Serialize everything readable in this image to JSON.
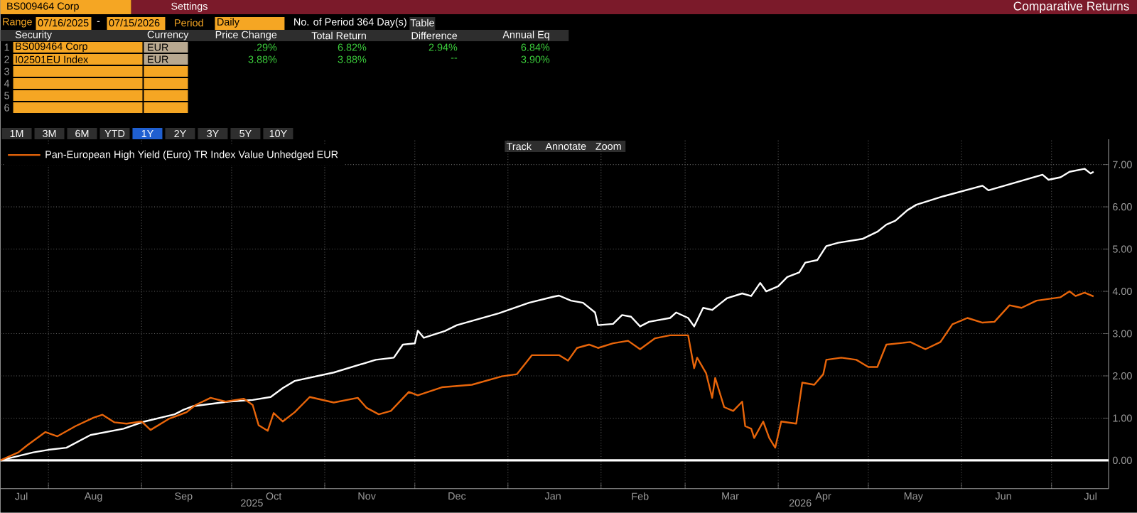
{
  "chart_data": {
    "type": "line",
    "title": "Comparative Returns",
    "annotations": [
      "BS009464 Corp",
      "Settings",
      "Range",
      "07/16/2025",
      "-",
      "07/15/2026",
      "Period",
      "Daily",
      "No. of Period 364 Day(s)",
      "Table",
      "Security",
      "Currency",
      "Price Change",
      "Total Return",
      "Difference",
      "Annual Eq",
      "BS009464 Corp",
      "EUR",
      ".29%",
      "6.82%",
      "2.94%",
      "6.84%",
      "I02501EU Index",
      "EUR",
      "3.88%",
      "3.88%",
      "--",
      "3.90%",
      "1M",
      "3M",
      "6M",
      "YTD",
      "1Y",
      "2Y",
      "3Y",
      "5Y",
      "10Y",
      "Track",
      "Annotate",
      "Zoom",
      "2025",
      "2026",
      "1",
      "2",
      "3",
      "4",
      "5",
      "6"
    ],
    "xlim": [
      "2025-07-16",
      "2026-07-20"
    ],
    "ylim": [
      -0.67,
      7.6
    ],
    "xticks": [
      {
        "value": "2025-08-01",
        "label": null
      },
      {
        "value": "2025-09-01",
        "label": null
      },
      {
        "value": "2025-10-01",
        "label": null
      },
      {
        "value": "2025-11-01",
        "label": null
      },
      {
        "value": "2025-12-01",
        "label": null
      },
      {
        "value": "2026-01-01",
        "label": null
      },
      {
        "value": "2026-02-01",
        "label": null
      },
      {
        "value": "2026-03-01",
        "label": null
      },
      {
        "value": "2026-04-01",
        "label": null
      },
      {
        "value": "2026-05-01",
        "label": null
      },
      {
        "value": "2026-06-01",
        "label": null
      },
      {
        "value": "2026-07-01",
        "label": null
      },
      {
        "value": "2025-07-23",
        "label": "Jul"
      },
      {
        "value": "2025-08-16",
        "label": "Aug"
      },
      {
        "value": "2025-09-15",
        "label": "Sep"
      },
      {
        "value": "2025-10-15",
        "label": "Oct"
      },
      {
        "value": "2025-11-15",
        "label": "Nov"
      },
      {
        "value": "2025-12-15",
        "label": "Dec"
      },
      {
        "value": "2026-01-16",
        "label": "Jan"
      },
      {
        "value": "2026-02-14",
        "label": "Feb"
      },
      {
        "value": "2026-03-16",
        "label": "Mar"
      },
      {
        "value": "2026-04-16",
        "label": "Apr"
      },
      {
        "value": "2026-05-16",
        "label": "May"
      },
      {
        "value": "2026-06-15",
        "label": "Jun"
      },
      {
        "value": "2026-07-14",
        "label": "Jul"
      }
    ],
    "yticks": [
      {
        "value": 0,
        "label": "0.00"
      },
      {
        "value": 1,
        "label": "1.00"
      },
      {
        "value": 2,
        "label": "2.00"
      },
      {
        "value": 3,
        "label": "3.00"
      },
      {
        "value": 4,
        "label": "4.00"
      },
      {
        "value": 5,
        "label": "5.00"
      },
      {
        "value": 6,
        "label": "6.00"
      },
      {
        "value": 7,
        "label": "7.00"
      }
    ],
    "grid": true,
    "legend": "top left",
    "ref_lines": [
      {
        "axis": "y",
        "value": 0,
        "color": "#ffffff"
      }
    ],
    "series": [
      {
        "color": "#ffffff",
        "x": [
          "2025-07-16",
          "2025-07-27",
          "2025-08-01",
          "2025-08-07",
          "2025-08-15",
          "2025-08-26",
          "2025-09-02",
          "2025-09-12",
          "2025-09-15",
          "2025-09-18",
          "2025-09-30",
          "2025-10-08",
          "2025-10-14",
          "2025-10-18",
          "2025-10-22",
          "2025-11-04",
          "2025-11-18",
          "2025-11-24",
          "2025-11-27",
          "2025-12-01",
          "2025-12-02",
          "2025-12-04",
          "2025-12-11",
          "2025-12-15",
          "2025-12-29",
          "2026-01-08",
          "2026-01-16",
          "2026-01-18",
          "2026-01-22",
          "2026-01-26",
          "2026-01-30",
          "2026-01-31",
          "2026-02-05",
          "2026-02-08",
          "2026-02-11",
          "2026-02-14",
          "2026-02-17",
          "2026-02-24",
          "2026-02-26",
          "2026-03-02",
          "2026-03-04",
          "2026-03-07",
          "2026-03-10",
          "2026-03-13",
          "2026-03-15",
          "2026-03-20",
          "2026-03-23",
          "2026-03-26",
          "2026-03-28",
          "2026-04-01",
          "2026-04-04",
          "2026-04-08",
          "2026-04-10",
          "2026-04-14",
          "2026-04-17",
          "2026-04-21",
          "2026-04-29",
          "2026-05-04",
          "2026-05-07",
          "2026-05-10",
          "2026-05-14",
          "2026-05-17",
          "2026-05-26",
          "2026-06-08",
          "2026-06-10",
          "2026-06-28",
          "2026-06-30",
          "2026-07-04",
          "2026-07-07",
          "2026-07-12",
          "2026-07-14",
          "2026-07-15"
        ],
        "values": [
          0,
          0.19,
          0.25,
          0.3,
          0.6,
          0.75,
          0.92,
          1.09,
          1.2,
          1.28,
          1.39,
          1.43,
          1.5,
          1.71,
          1.88,
          2.08,
          2.38,
          2.43,
          2.74,
          2.77,
          3.07,
          2.9,
          3.06,
          3.2,
          3.48,
          3.73,
          3.87,
          3.9,
          3.78,
          3.73,
          3.5,
          3.2,
          3.23,
          3.44,
          3.4,
          3.17,
          3.28,
          3.37,
          3.5,
          3.37,
          3.17,
          3.61,
          3.56,
          3.73,
          3.84,
          3.95,
          3.89,
          4.2,
          4.0,
          4.12,
          4.34,
          4.45,
          4.68,
          4.74,
          5.07,
          5.15,
          5.24,
          5.41,
          5.58,
          5.67,
          5.92,
          6.05,
          6.25,
          6.5,
          6.39,
          6.76,
          6.64,
          6.7,
          6.83,
          6.9,
          6.79,
          6.83
        ]
      },
      {
        "name": "Pan-European High Yield (Euro) TR Index Value Unhedged EUR",
        "color": "#e8650a",
        "x": [
          "2025-07-16",
          "2025-07-22",
          "2025-07-25",
          "2025-07-31",
          "2025-08-04",
          "2025-08-10",
          "2025-08-16",
          "2025-08-19",
          "2025-08-23",
          "2025-08-27",
          "2025-09-01",
          "2025-09-04",
          "2025-09-10",
          "2025-09-16",
          "2025-09-19",
          "2025-09-24",
          "2025-09-29",
          "2025-10-05",
          "2025-10-08",
          "2025-10-10",
          "2025-10-13",
          "2025-10-15",
          "2025-10-18",
          "2025-10-22",
          "2025-10-27",
          "2025-11-04",
          "2025-11-12",
          "2025-11-15",
          "2025-11-19",
          "2025-11-23",
          "2025-11-29",
          "2025-12-02",
          "2025-12-10",
          "2025-12-20",
          "2025-12-30",
          "2026-01-04",
          "2026-01-09",
          "2026-01-18",
          "2026-01-21",
          "2026-01-24",
          "2026-01-28",
          "2026-01-31",
          "2026-02-05",
          "2026-02-10",
          "2026-02-14",
          "2026-02-19",
          "2026-02-24",
          "2026-03-02",
          "2026-03-04",
          "2026-03-05",
          "2026-03-08",
          "2026-03-10",
          "2026-03-11",
          "2026-03-14",
          "2026-03-17",
          "2026-03-20",
          "2026-03-21",
          "2026-03-23",
          "2026-03-24",
          "2026-03-27",
          "2026-03-29",
          "2026-03-31",
          "2026-04-02",
          "2026-04-07",
          "2026-04-09",
          "2026-04-13",
          "2026-04-16",
          "2026-04-17",
          "2026-04-22",
          "2026-04-27",
          "2026-05-01",
          "2026-05-04",
          "2026-05-07",
          "2026-05-15",
          "2026-05-20",
          "2026-05-25",
          "2026-05-29",
          "2026-06-03",
          "2026-06-08",
          "2026-06-12",
          "2026-06-17",
          "2026-06-21",
          "2026-06-26",
          "2026-07-04",
          "2026-07-07",
          "2026-07-09",
          "2026-07-12",
          "2026-07-15"
        ],
        "values": [
          0,
          0.19,
          0.36,
          0.67,
          0.57,
          0.81,
          1.01,
          1.08,
          0.9,
          0.87,
          0.92,
          0.72,
          0.98,
          1.14,
          1.31,
          1.48,
          1.39,
          1.46,
          1.31,
          0.83,
          0.7,
          1.12,
          0.92,
          1.14,
          1.5,
          1.37,
          1.48,
          1.24,
          1.09,
          1.17,
          1.62,
          1.54,
          1.73,
          1.79,
          1.99,
          2.04,
          2.49,
          2.49,
          2.36,
          2.66,
          2.74,
          2.66,
          2.77,
          2.83,
          2.63,
          2.89,
          2.96,
          2.96,
          2.18,
          2.43,
          2.06,
          1.48,
          1.95,
          1.26,
          1.17,
          1.39,
          0.81,
          0.75,
          0.53,
          0.92,
          0.53,
          0.3,
          0.92,
          0.87,
          1.84,
          1.79,
          2.04,
          2.38,
          2.43,
          2.38,
          2.21,
          2.21,
          2.74,
          2.8,
          2.63,
          2.8,
          3.22,
          3.37,
          3.26,
          3.28,
          3.67,
          3.61,
          3.78,
          3.86,
          4.0,
          3.89,
          3.97,
          3.88
        ]
      }
    ]
  }
}
